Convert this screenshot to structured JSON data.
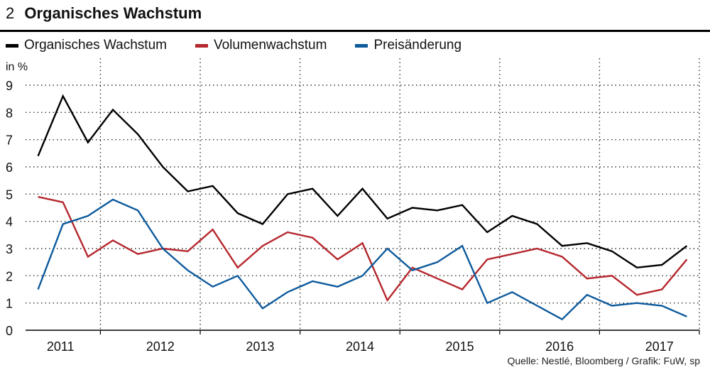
{
  "header": {
    "number": "2",
    "title": "Organisches Wachstum"
  },
  "unit_label": "in %",
  "source": "Quelle: Nestlé, Bloomberg / Grafik: FuW, sp",
  "colors": {
    "organic": "#000000",
    "volume": "#b5272d",
    "price": "#0d5a9c",
    "grid": "#333333"
  },
  "chart_data": {
    "type": "line",
    "title": "Organisches Wachstum",
    "ylabel": "in %",
    "ylim": [
      0,
      9
    ],
    "yticks": [
      "0",
      "1",
      "2",
      "3",
      "4",
      "5",
      "6",
      "7",
      "8",
      "9"
    ],
    "xlim": [
      2010.75,
      2017.5
    ],
    "year_labels": [
      "2011",
      "2012",
      "2013",
      "2014",
      "2015",
      "2016",
      "2017"
    ],
    "x": [
      2010.875,
      2011.125,
      2011.375,
      2011.625,
      2011.875,
      2012.125,
      2012.375,
      2012.625,
      2012.875,
      2013.125,
      2013.375,
      2013.625,
      2013.875,
      2014.125,
      2014.375,
      2014.625,
      2014.875,
      2015.125,
      2015.375,
      2015.625,
      2015.875,
      2016.125,
      2016.375,
      2016.625,
      2016.875,
      2017.125,
      2017.375
    ],
    "series": [
      {
        "name": "Organisches Wachstum",
        "color_key": "organic",
        "values": [
          6.4,
          8.6,
          6.9,
          8.1,
          7.2,
          6.0,
          5.1,
          5.3,
          4.3,
          3.9,
          5.0,
          5.2,
          4.2,
          5.2,
          4.1,
          4.5,
          4.4,
          4.6,
          3.6,
          4.2,
          3.9,
          3.1,
          3.2,
          2.9,
          2.3,
          2.4,
          3.1
        ]
      },
      {
        "name": "Volumenwachstum",
        "color_key": "volume",
        "values": [
          4.9,
          4.7,
          2.7,
          3.3,
          2.8,
          3.0,
          2.9,
          3.7,
          2.3,
          3.1,
          3.6,
          3.4,
          2.6,
          3.2,
          1.1,
          2.3,
          1.9,
          1.5,
          2.6,
          2.8,
          3.0,
          2.7,
          1.9,
          2.0,
          1.3,
          1.5,
          2.6
        ]
      },
      {
        "name": "Preisänderung",
        "color_key": "price",
        "values": [
          1.5,
          3.9,
          4.2,
          4.8,
          4.4,
          3.0,
          2.2,
          1.6,
          2.0,
          0.8,
          1.4,
          1.8,
          1.6,
          2.0,
          3.0,
          2.2,
          2.5,
          3.1,
          1.0,
          1.4,
          0.9,
          0.4,
          1.3,
          0.9,
          1.0,
          0.9,
          0.5
        ]
      }
    ]
  }
}
